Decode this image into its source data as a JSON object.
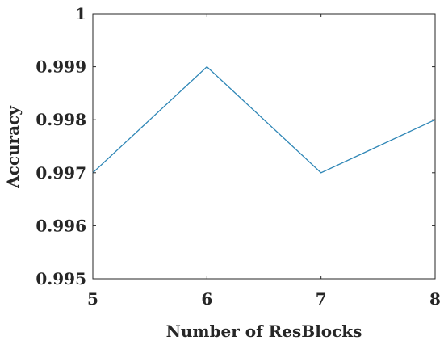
{
  "chart_data": {
    "type": "line",
    "title": "",
    "xlabel": "Number of ResBlocks",
    "ylabel": "Accuracy",
    "x": [
      5,
      6,
      7,
      8
    ],
    "xticks": [
      "5",
      "6",
      "7",
      "8"
    ],
    "yticks": [
      "0.995",
      "0.996",
      "0.997",
      "0.998",
      "0.999",
      "1"
    ],
    "xlim": [
      5,
      8
    ],
    "ylim": [
      0.995,
      1
    ],
    "grid": false,
    "series": [
      {
        "values": [
          0.997,
          0.999,
          0.997,
          0.998
        ],
        "color": "#2e86b6"
      }
    ]
  }
}
